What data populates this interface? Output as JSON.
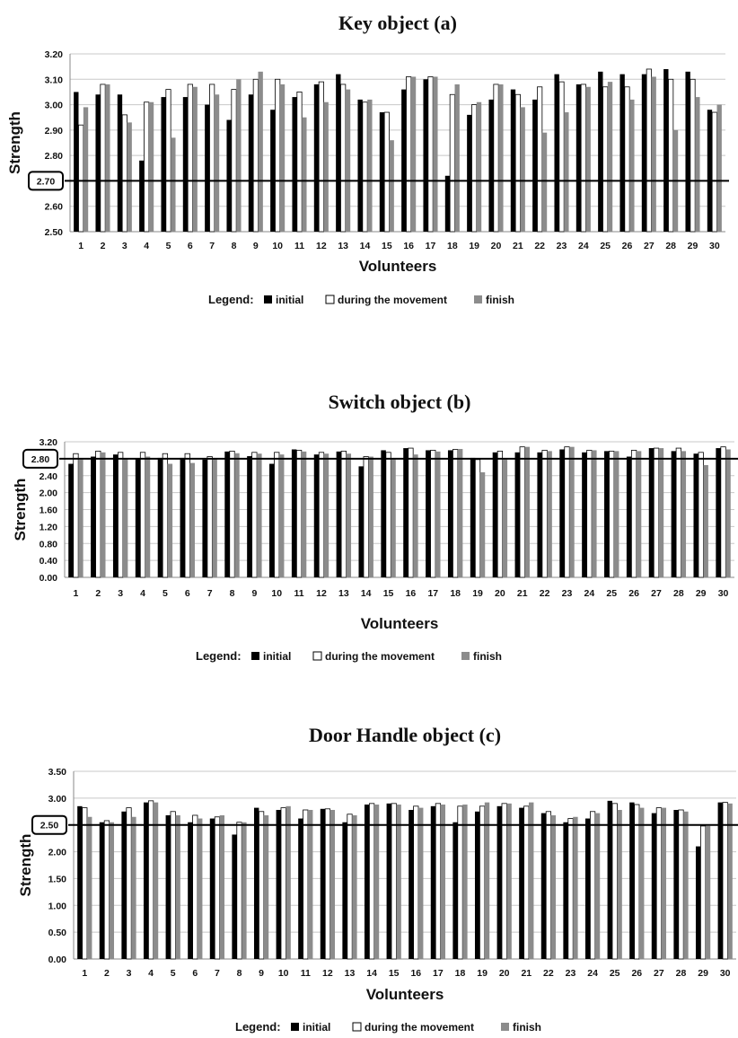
{
  "chart_data": [
    {
      "type": "bar",
      "title": "Key object (a)",
      "xlabel": "Volunteers",
      "ylabel": "Strength",
      "ylim": [
        2.5,
        3.2
      ],
      "yticks": [
        "2.50",
        "2.60",
        "2.70",
        "2.80",
        "2.90",
        "3.00",
        "3.10",
        "3.20"
      ],
      "threshold": 2.7,
      "threshold_label": "2.70",
      "categories": [
        "1",
        "2",
        "3",
        "4",
        "5",
        "6",
        "7",
        "8",
        "9",
        "10",
        "11",
        "12",
        "13",
        "14",
        "15",
        "16",
        "17",
        "18",
        "19",
        "20",
        "21",
        "22",
        "23",
        "24",
        "25",
        "26",
        "27",
        "28",
        "29",
        "30"
      ],
      "series": [
        {
          "name": "initial",
          "color": "#000000",
          "values": [
            3.05,
            3.04,
            3.04,
            2.78,
            3.03,
            3.03,
            3.0,
            2.94,
            3.04,
            2.98,
            3.03,
            3.08,
            3.12,
            3.02,
            2.97,
            3.06,
            3.1,
            2.72,
            2.96,
            3.02,
            3.06,
            3.02,
            3.12,
            3.08,
            3.13,
            3.12,
            3.12,
            3.14,
            3.13,
            2.98
          ]
        },
        {
          "name": "during the movement",
          "color": "#ffffff",
          "values": [
            2.92,
            3.08,
            2.96,
            3.01,
            3.06,
            3.08,
            3.08,
            3.06,
            3.1,
            3.1,
            3.05,
            3.09,
            3.08,
            3.01,
            2.97,
            3.11,
            3.11,
            3.04,
            3.0,
            3.08,
            3.04,
            3.07,
            3.09,
            3.08,
            3.07,
            3.07,
            3.14,
            3.1,
            3.1,
            2.97
          ]
        },
        {
          "name": "finish",
          "color": "#8c8c8c",
          "values": [
            2.99,
            3.08,
            2.93,
            3.01,
            2.87,
            3.07,
            3.04,
            3.1,
            3.13,
            3.08,
            2.95,
            3.01,
            3.06,
            3.02,
            2.86,
            3.11,
            3.11,
            3.08,
            3.01,
            3.08,
            2.99,
            2.89,
            2.97,
            3.07,
            3.09,
            3.02,
            3.11,
            2.9,
            3.03,
            3.0
          ]
        }
      ],
      "legend": {
        "heading": "Legend:",
        "placement": "bottom"
      }
    },
    {
      "type": "bar",
      "title": "Switch object (b)",
      "xlabel": "Volunteers",
      "ylabel": "Strength",
      "ylim": [
        0,
        3.2
      ],
      "yticks": [
        "0.00",
        "0.40",
        "0.80",
        "1.20",
        "1.60",
        "2.00",
        "2.40",
        "2.80",
        "3.20"
      ],
      "threshold": 2.8,
      "threshold_label": "2.80",
      "categories": [
        "1",
        "2",
        "3",
        "4",
        "5",
        "6",
        "7",
        "8",
        "9",
        "10",
        "11",
        "12",
        "13",
        "14",
        "15",
        "16",
        "17",
        "18",
        "19",
        "20",
        "21",
        "22",
        "23",
        "24",
        "25",
        "26",
        "27",
        "28",
        "29",
        "30"
      ],
      "series": [
        {
          "name": "initial",
          "color": "#000000",
          "values": [
            2.68,
            2.85,
            2.9,
            2.8,
            2.82,
            2.82,
            2.78,
            2.97,
            2.86,
            2.68,
            3.02,
            2.9,
            2.97,
            2.62,
            3.0,
            3.05,
            3.0,
            3.0,
            2.82,
            2.95,
            2.95,
            2.95,
            3.02,
            2.95,
            2.98,
            2.85,
            3.05,
            2.98,
            2.92,
            3.05
          ]
        },
        {
          "name": "during the movement",
          "color": "#ffffff",
          "values": [
            2.92,
            2.98,
            2.95,
            2.95,
            2.92,
            2.92,
            2.85,
            2.98,
            2.95,
            2.95,
            3.0,
            2.95,
            2.98,
            2.85,
            2.95,
            3.05,
            3.0,
            3.02,
            2.78,
            2.98,
            3.08,
            3.0,
            3.08,
            3.0,
            2.98,
            3.0,
            3.05,
            3.05,
            2.95,
            3.08
          ]
        },
        {
          "name": "finish",
          "color": "#8c8c8c",
          "values": [
            2.78,
            2.95,
            2.8,
            2.85,
            2.68,
            2.7,
            2.8,
            2.93,
            2.92,
            2.9,
            2.97,
            2.92,
            2.92,
            2.85,
            2.78,
            2.9,
            2.97,
            3.03,
            2.48,
            2.78,
            3.08,
            2.98,
            3.08,
            3.0,
            2.98,
            2.98,
            3.05,
            2.98,
            2.65,
            3.02
          ]
        }
      ],
      "legend": {
        "heading": "Legend:",
        "placement": "bottom"
      }
    },
    {
      "type": "bar",
      "title": "Door Handle object (c)",
      "xlabel": "Volunteers",
      "ylabel": "Strength",
      "ylim": [
        0,
        3.5
      ],
      "yticks": [
        "0.00",
        "0.50",
        "1.00",
        "1.50",
        "2.00",
        "2.50",
        "3.00",
        "3.50"
      ],
      "threshold": 2.5,
      "threshold_label": "2.50",
      "categories": [
        "1",
        "2",
        "3",
        "4",
        "5",
        "6",
        "7",
        "8",
        "9",
        "10",
        "11",
        "12",
        "13",
        "14",
        "15",
        "16",
        "17",
        "18",
        "19",
        "20",
        "21",
        "22",
        "23",
        "24",
        "25",
        "26",
        "27",
        "28",
        "29",
        "30"
      ],
      "series": [
        {
          "name": "initial",
          "color": "#000000",
          "values": [
            2.85,
            2.55,
            2.75,
            2.92,
            2.68,
            2.55,
            2.62,
            2.32,
            2.82,
            2.78,
            2.62,
            2.8,
            2.55,
            2.88,
            2.9,
            2.78,
            2.85,
            2.55,
            2.75,
            2.85,
            2.82,
            2.72,
            2.55,
            2.62,
            2.95,
            2.92,
            2.72,
            2.78,
            2.1,
            2.92
          ]
        },
        {
          "name": "during the movement",
          "color": "#ffffff",
          "values": [
            2.82,
            2.58,
            2.82,
            2.95,
            2.75,
            2.68,
            2.65,
            2.55,
            2.75,
            2.82,
            2.78,
            2.8,
            2.7,
            2.9,
            2.9,
            2.85,
            2.9,
            2.85,
            2.85,
            2.9,
            2.85,
            2.75,
            2.62,
            2.75,
            2.9,
            2.88,
            2.82,
            2.78,
            2.48,
            2.92
          ]
        },
        {
          "name": "finish",
          "color": "#8c8c8c",
          "values": [
            2.65,
            2.55,
            2.65,
            2.92,
            2.68,
            2.62,
            2.68,
            2.55,
            2.68,
            2.85,
            2.78,
            2.78,
            2.68,
            2.88,
            2.88,
            2.82,
            2.88,
            2.88,
            2.92,
            2.9,
            2.92,
            2.68,
            2.65,
            2.72,
            2.78,
            2.82,
            2.82,
            2.75,
            2.48,
            2.9
          ]
        }
      ],
      "legend": {
        "heading": "Legend:",
        "placement": "bottom"
      }
    }
  ]
}
